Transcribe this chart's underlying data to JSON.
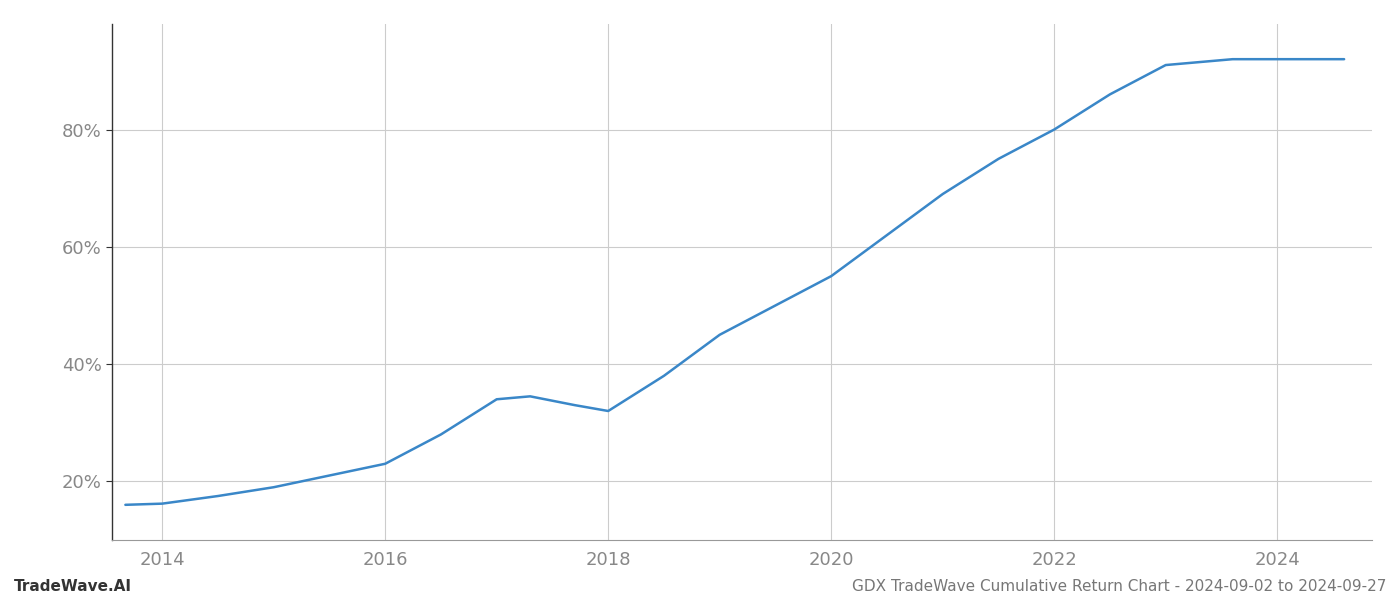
{
  "x_values": [
    2013.67,
    2014.0,
    2014.5,
    2015.0,
    2015.5,
    2016.0,
    2016.5,
    2017.0,
    2017.3,
    2017.7,
    2018.0,
    2018.5,
    2019.0,
    2019.5,
    2020.0,
    2020.5,
    2021.0,
    2021.5,
    2022.0,
    2022.5,
    2023.0,
    2023.3,
    2023.6,
    2024.0,
    2024.6
  ],
  "y_values": [
    16,
    16.2,
    17.5,
    19,
    21,
    23,
    28,
    34,
    34.5,
    33,
    32,
    38,
    45,
    50,
    55,
    62,
    69,
    75,
    80,
    86,
    91,
    91.5,
    92,
    92,
    92
  ],
  "line_color": "#3a87c8",
  "line_width": 1.8,
  "title": "GDX TradeWave Cumulative Return Chart - 2024-09-02 to 2024-09-27",
  "watermark": "TradeWave.AI",
  "ytick_labels": [
    "20%",
    "40%",
    "60%",
    "80%"
  ],
  "ytick_values": [
    20,
    40,
    60,
    80
  ],
  "xtick_values": [
    2014,
    2016,
    2018,
    2020,
    2022,
    2024
  ],
  "xlim": [
    2013.55,
    2024.85
  ],
  "ylim": [
    10,
    98
  ],
  "background_color": "#ffffff",
  "grid_color": "#cccccc",
  "left_spine_color": "#333333",
  "bottom_spine_color": "#999999",
  "title_fontsize": 11,
  "watermark_fontsize": 11,
  "tick_fontsize": 13,
  "tick_color": "#888888"
}
